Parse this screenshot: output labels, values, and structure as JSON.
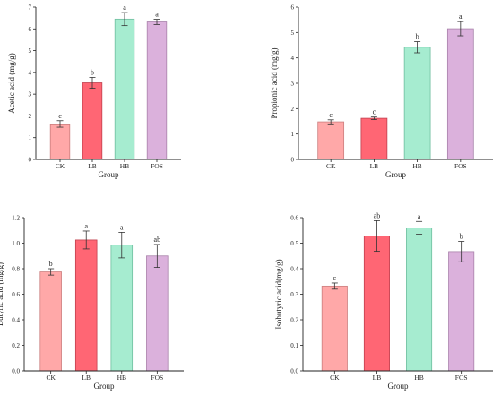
{
  "chart_data": [
    {
      "type": "bar",
      "categories": [
        "CK",
        "LB",
        "HB",
        "FOS"
      ],
      "values": [
        1.63,
        3.52,
        6.45,
        6.32
      ],
      "errors": [
        0.15,
        0.25,
        0.3,
        0.12
      ],
      "significance": [
        "c",
        "b",
        "a",
        "a"
      ],
      "xlabel": "Group",
      "ylabel": "Acetic acid (mg/g)",
      "ylim": [
        0,
        7
      ],
      "yticks": [
        "0",
        "1",
        "2",
        "3",
        "4",
        "5",
        "6",
        "7"
      ]
    },
    {
      "type": "bar",
      "categories": [
        "CK",
        "LB",
        "HB",
        "FOS"
      ],
      "values": [
        1.48,
        1.62,
        4.42,
        5.15
      ],
      "errors": [
        0.08,
        0.05,
        0.22,
        0.28
      ],
      "significance": [
        "c",
        "c",
        "b",
        "a"
      ],
      "xlabel": "Group",
      "ylabel": "Propionic acid (mg/g)",
      "ylim": [
        0,
        6
      ],
      "yticks": [
        "0",
        "1",
        "2",
        "3",
        "4",
        "5",
        "6"
      ]
    },
    {
      "type": "bar",
      "categories": [
        "CK",
        "LB",
        "HB",
        "FOS"
      ],
      "values": [
        0.775,
        1.025,
        0.985,
        0.9
      ],
      "errors": [
        0.025,
        0.07,
        0.1,
        0.09
      ],
      "significance": [
        "b",
        "a",
        "a",
        "ab"
      ],
      "xlabel": "Group",
      "ylabel": "Butyric acid (mg/g)",
      "ylim": [
        0,
        1.2
      ],
      "yticks": [
        "0.0",
        "0.2",
        "0.4",
        "0.6",
        "0.8",
        "1.0",
        "1.2"
      ]
    },
    {
      "type": "bar",
      "categories": [
        "CK",
        "LB",
        "HB",
        "FOS"
      ],
      "values": [
        0.332,
        0.528,
        0.56,
        0.467
      ],
      "errors": [
        0.012,
        0.06,
        0.025,
        0.04
      ],
      "significance": [
        "c",
        "ab",
        "a",
        "b"
      ],
      "xlabel": "Group",
      "ylabel": "Isobutyric acid(mg/g)",
      "ylim": [
        0,
        0.6
      ],
      "yticks": [
        "0.0",
        "0.1",
        "0.2",
        "0.3",
        "0.4",
        "0.5",
        "0.6"
      ]
    }
  ],
  "colors": {
    "bar_fills": [
      "#ffa8a8",
      "#ff6674",
      "#a6ecd0",
      "#dbb1dc"
    ],
    "bar_strokes": [
      "#cc7e7e",
      "#c0404e",
      "#6fbe9f",
      "#a982ab"
    ],
    "axis": "#222222"
  }
}
